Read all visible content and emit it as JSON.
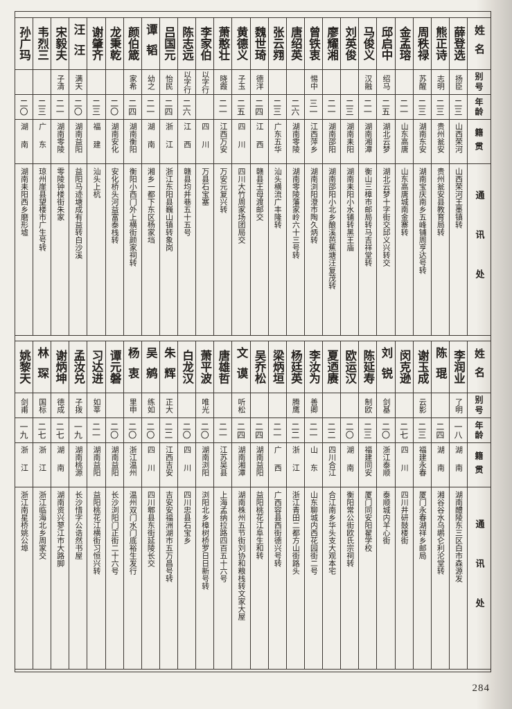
{
  "page": {
    "number": "284"
  },
  "headers": {
    "name": "姓名",
    "alias": "别号",
    "age": "年龄",
    "native": "籍贯",
    "address": "通讯处"
  },
  "sections": [
    {
      "entries": [
        {
          "name": "薛登选",
          "alias": "扬臣",
          "age": "二三",
          "native": "山西荣河",
          "address": "山西荣河王墨镇转"
        },
        {
          "name": "熊正诗",
          "alias": "志明",
          "age": "二三",
          "native": "贵州瓮安",
          "address": "贵州瓮安县教育局转"
        },
        {
          "name": "周秩禄",
          "alias": "苏醒",
          "age": "二三",
          "native": "湖南东安",
          "address": "湖南宝庆南乡五峰铺周亨达号转"
        },
        {
          "name": "金孟瑢",
          "alias": "",
          "age": "二一",
          "native": "山东高唐",
          "address": "山东高唐城南金寨转"
        },
        {
          "name": "邱启中",
          "alias": "绍马",
          "age": "二五",
          "native": "湖北云梦",
          "address": "湖北云梦十字街交邱义兴转交"
        },
        {
          "name": "马俊义",
          "alias": "汉融",
          "age": "二一",
          "native": "湖南湘潭",
          "address": "衡山三樟市邮局转马吉祥堂转"
        },
        {
          "name": "刘英俊",
          "alias": "",
          "age": "二三",
          "native": "湖南耒阳",
          "address": "湖南耒阳小水铺转黑王庙"
        },
        {
          "name": "廖耀湘",
          "alias": "",
          "age": "二一",
          "native": "湖南邵阳",
          "address": "湖南邵阳小北乡酿溪芭蕉塘汪复茂转"
        },
        {
          "name": "曾铁衷",
          "alias": "惕中",
          "age": "三一",
          "native": "江西萍乡",
          "address": "湖南浏阳澄市陶久炳转"
        },
        {
          "name": "唐绍英",
          "alias": "",
          "age": "二六",
          "native": "湖南零陵",
          "address": "湖南零陵藩家岭六十三号转"
        },
        {
          "name": "张云翙",
          "alias": "",
          "age": "二三",
          "native": "广东五华",
          "address": "汕头横流广丰隆转"
        },
        {
          "name": "魏世琦",
          "alias": "德洋",
          "age": "二四",
          "native": "江西",
          "address": "赣县王母渡邮交"
        },
        {
          "name": "黄德义",
          "alias": "子玉",
          "age": "二五",
          "native": "四川",
          "address": "四川大竹周家场团局交"
        },
        {
          "name": "萧憨壮",
          "alias": "晓霞",
          "age": "二一",
          "native": "江西万安",
          "address": "万安元复兴转"
        },
        {
          "name": "李家伯",
          "alias": "以字行",
          "age": "",
          "native": "四川",
          "address": "万县石宝塞"
        },
        {
          "name": "陈志远",
          "alias": "以字行",
          "age": "二六",
          "native": "江西",
          "address": "赣县均井巷五十五号"
        },
        {
          "name": "吕国元",
          "alias": "怡民",
          "age": "二四",
          "native": "浙江",
          "address": "浙江东阳县巍山镇转象岗"
        },
        {
          "name": "谭韬",
          "alias": "幼之",
          "age": "二一",
          "native": "湖南",
          "address": "湘乡一都下东区杨家垱"
        },
        {
          "name": "颜伯箴",
          "alias": "家希",
          "age": "二四",
          "native": "湖南衡阳",
          "address": "衡阳小西门外上横街颜家祠转"
        },
        {
          "name": "龙秉乾",
          "alias": "",
          "age": "二〇",
          "native": "湖南安化",
          "address": "安化桥头河益富泰栈转"
        },
        {
          "name": "谢肇齐",
          "alias": "",
          "age": "二三",
          "native": "福建",
          "address": "汕头上杭"
        },
        {
          "name": "汪汪",
          "alias": "满天",
          "age": "二〇",
          "native": "湖南益阳",
          "address": "益阳马迹塘成有益转白沙溪"
        },
        {
          "name": "宋毅夫",
          "alias": "子清",
          "age": "二一",
          "native": "湖南零陵",
          "address": "零陵钟楼街朱家"
        },
        {
          "name": "韦烈三",
          "alias": "",
          "age": "二三",
          "native": "广东",
          "address": "琼州崖县望楼市广生号转"
        },
        {
          "name": "孙广玛",
          "alias": "",
          "age": "二〇",
          "native": "湖南",
          "address": "湖南耒阳西乡磨形墟"
        }
      ]
    },
    {
      "entries": [
        {
          "name": "李润业",
          "alias": "了明",
          "age": "一八",
          "native": "湖南",
          "address": "湖南醴陵东三区白市森源发"
        },
        {
          "name": "陈琨",
          "alias": "",
          "age": "二四",
          "native": "湖南",
          "address": "湘谷谷水乌鹕仑利沦堂转"
        },
        {
          "name": "谢玉成",
          "alias": "云影",
          "age": "二三",
          "native": "福建永春",
          "address": "厦门永春湖祥乡邮局"
        },
        {
          "name": "闵克逊",
          "alias": "",
          "age": "二七",
          "native": "四川",
          "address": "四川井研鼓楼街"
        },
        {
          "name": "刘锐",
          "alias": "剑基",
          "age": "二〇",
          "native": "浙江泰顺",
          "address": "泰顺城内羊心街"
        },
        {
          "name": "陈延寿",
          "alias": "制欧",
          "age": "二三",
          "native": "福建同安",
          "address": "厦门同安阳翟学校"
        },
        {
          "name": "欧运汉",
          "alias": "",
          "age": "二〇",
          "native": "湖南",
          "address": "衡阳常公街欧氏宗祠转"
        },
        {
          "name": "夏迺赓",
          "alias": "",
          "age": "二二",
          "native": "四川合江",
          "address": "合江南乡华头支大观本宅"
        },
        {
          "name": "李汝为",
          "alias": "善卿",
          "age": "二一",
          "native": "山东",
          "address": "山东聊城内西花园街二号"
        },
        {
          "name": "杨廷英",
          "alias": "腾鹰",
          "age": "二二",
          "native": "浙江",
          "address": "浙江青田二都方山街路头"
        },
        {
          "name": "梁炳垣",
          "alias": "",
          "age": "二一",
          "native": "广西",
          "address": "广西容县西街德兴号转"
        },
        {
          "name": "吴乔松",
          "alias": "",
          "age": "二四",
          "native": "湖南益阳",
          "address": "益阳桃花江阜生和转"
        },
        {
          "name": "文谟",
          "alias": "听松",
          "age": "二四",
          "native": "湖南湘潭",
          "address": "湖南株州五节街刘协和粮栈转文家大屋"
        },
        {
          "name": "唐雄哲",
          "alias": "",
          "age": "二一",
          "native": "江苏吴县",
          "address": "上海孟纳拉路四百五十六号"
        },
        {
          "name": "萧平波",
          "alias": "唯光",
          "age": "二〇",
          "native": "湖南浏阳",
          "address": "浏阳北乡樟树桥罗日日新号转"
        },
        {
          "name": "白龙汉",
          "alias": "",
          "age": "二〇",
          "native": "四川",
          "address": "四川忠县石宝乡"
        },
        {
          "name": "朱辉",
          "alias": "正大",
          "age": "二二",
          "native": "江西吉安",
          "address": "吉安安福洲湖市五万昌号转"
        },
        {
          "name": "吴鹓",
          "alias": "练如",
          "age": "二〇",
          "native": "四川",
          "address": "四川郫县东街延陵长交"
        },
        {
          "name": "杨衷",
          "alias": "里申",
          "age": "二〇",
          "native": "浙江温州",
          "address": "温州双门水门底裕生发行"
        },
        {
          "name": "谭元磐",
          "alias": "",
          "age": "二〇",
          "native": "湖南益阳",
          "address": "长沙浏阳门正街二十六号"
        },
        {
          "name": "习达进",
          "alias": "如莘",
          "age": "二一",
          "native": "湖南益阳",
          "address": "益阳桃花江横街习恒兴转"
        },
        {
          "name": "孟汝兑",
          "alias": "子拨",
          "age": "一九",
          "native": "湖南桃源",
          "address": "长沙惜字公诰然书屋"
        },
        {
          "name": "谢炳坤",
          "alias": "德成",
          "age": "二七",
          "native": "湖南",
          "address": "湖南资兴蓼江市大路脚"
        },
        {
          "name": "林琛",
          "alias": "国标",
          "age": "二七",
          "native": "浙江",
          "address": "浙江临海北乡周家交"
        },
        {
          "name": "姚黎天",
          "alias": "剑甫",
          "age": "一九",
          "native": "浙江",
          "address": "浙江南星桥姚公埠"
        }
      ]
    }
  ]
}
